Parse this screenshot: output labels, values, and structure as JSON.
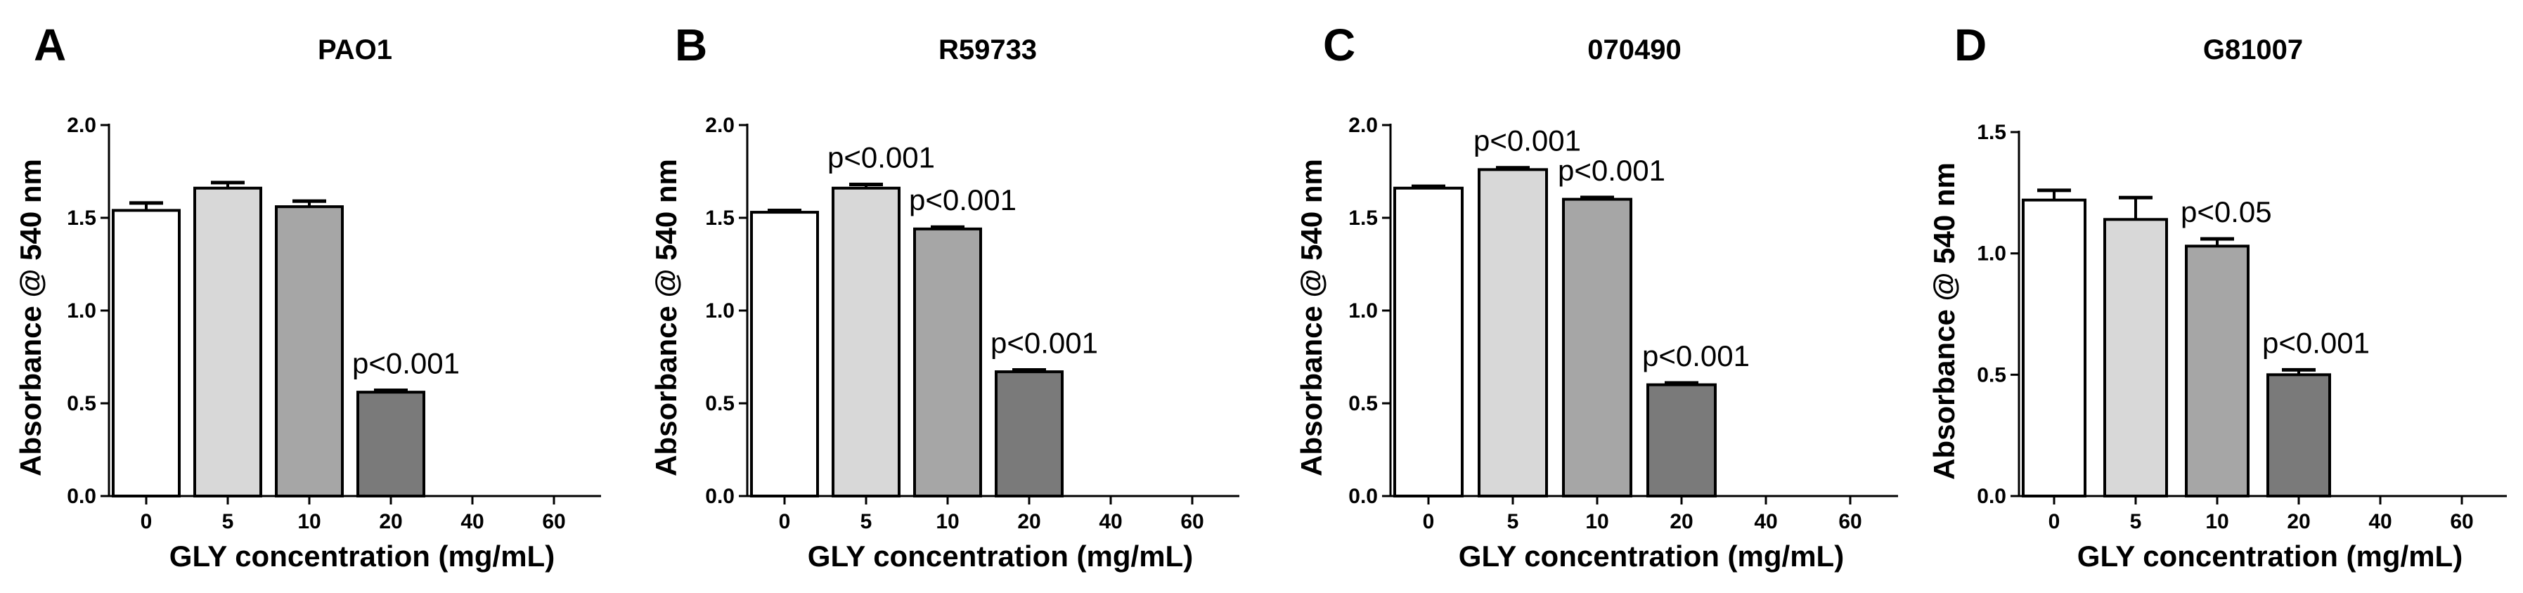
{
  "figure": {
    "panels": [
      "A",
      "B",
      "C",
      "D"
    ]
  },
  "chart_data": [
    {
      "panel": "A",
      "type": "bar",
      "title": "PAO1",
      "xlabel": "GLY concentration (mg/mL)",
      "ylabel": "Absorbance @ 540 nm",
      "ylim": [
        0,
        2.0
      ],
      "yticks": [
        "0.0",
        "0.5",
        "1.0",
        "1.5",
        "2.0"
      ],
      "categories": [
        "0",
        "5",
        "10",
        "20",
        "40",
        "60"
      ],
      "values": [
        1.54,
        1.66,
        1.56,
        0.56,
        0,
        0
      ],
      "errors": [
        0.04,
        0.03,
        0.03,
        0.01,
        0,
        0
      ],
      "annotations": [
        "",
        "",
        "",
        "p<0.001",
        "",
        ""
      ],
      "colors": [
        "#ffffff",
        "#d8d8d8",
        "#a6a6a6",
        "#7a7a7a",
        "#7a7a7a",
        "#7a7a7a"
      ]
    },
    {
      "panel": "B",
      "type": "bar",
      "title": "R59733",
      "xlabel": "GLY concentration (mg/mL)",
      "ylabel": "Absorbance @ 540 nm",
      "ylim": [
        0,
        2.0
      ],
      "yticks": [
        "0.0",
        "0.5",
        "1.0",
        "1.5",
        "2.0"
      ],
      "categories": [
        "0",
        "5",
        "10",
        "20",
        "40",
        "60"
      ],
      "values": [
        1.53,
        1.66,
        1.44,
        0.67,
        0,
        0
      ],
      "errors": [
        0.01,
        0.02,
        0.01,
        0.01,
        0,
        0
      ],
      "annotations": [
        "",
        "p<0.001",
        "p<0.001",
        "p<0.001",
        "",
        ""
      ],
      "colors": [
        "#ffffff",
        "#d8d8d8",
        "#a6a6a6",
        "#7a7a7a",
        "#7a7a7a",
        "#7a7a7a"
      ]
    },
    {
      "panel": "C",
      "type": "bar",
      "title": "070490",
      "xlabel": "GLY concentration (mg/mL)",
      "ylabel": "Absorbance @ 540 nm",
      "ylim": [
        0,
        2.0
      ],
      "yticks": [
        "0.0",
        "0.5",
        "1.0",
        "1.5",
        "2.0"
      ],
      "categories": [
        "0",
        "5",
        "10",
        "20",
        "40",
        "60"
      ],
      "values": [
        1.66,
        1.76,
        1.6,
        0.6,
        0,
        0
      ],
      "errors": [
        0.01,
        0.01,
        0.01,
        0.01,
        0,
        0
      ],
      "annotations": [
        "",
        "p<0.001",
        "p<0.001",
        "p<0.001",
        "",
        ""
      ],
      "colors": [
        "#ffffff",
        "#d8d8d8",
        "#a6a6a6",
        "#7a7a7a",
        "#7a7a7a",
        "#7a7a7a"
      ]
    },
    {
      "panel": "D",
      "type": "bar",
      "title": "G81007",
      "xlabel": "GLY concentration (mg/mL)",
      "ylabel": "Absorbance @ 540 nm",
      "ylim": [
        0,
        1.5
      ],
      "yticks": [
        "0.0",
        "0.5",
        "1.0",
        "1.5"
      ],
      "categories": [
        "0",
        "5",
        "10",
        "20",
        "40",
        "60"
      ],
      "values": [
        1.22,
        1.14,
        1.03,
        0.5,
        0,
        0
      ],
      "errors": [
        0.04,
        0.09,
        0.03,
        0.02,
        0,
        0
      ],
      "annotations": [
        "",
        "",
        "p<0.05",
        "p<0.001",
        "",
        ""
      ],
      "colors": [
        "#ffffff",
        "#d8d8d8",
        "#a6a6a6",
        "#7a7a7a",
        "#7a7a7a",
        "#7a7a7a"
      ]
    }
  ]
}
